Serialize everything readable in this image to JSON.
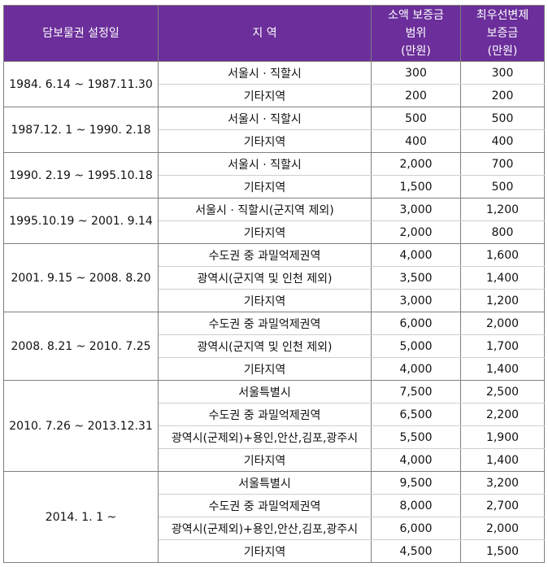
{
  "header": {
    "col1": "담보물권 설정일",
    "col2": "지 역",
    "col3": "소액 보증금\n범위\n(만원)",
    "col4": "최우선변제\n보증금\n(만원)"
  },
  "groups": [
    {
      "period": "1984. 6.14 ~ 1987.11.30",
      "rows": [
        {
          "region": "서울시 · 직할시",
          "range": "300",
          "priority": "300"
        },
        {
          "region": "기타지역",
          "range": "200",
          "priority": "200"
        }
      ]
    },
    {
      "period": "1987.12. 1 ~ 1990. 2.18",
      "rows": [
        {
          "region": "서울시 · 직할시",
          "range": "500",
          "priority": "500"
        },
        {
          "region": "기타지역",
          "range": "400",
          "priority": "400"
        }
      ]
    },
    {
      "period": "1990. 2.19 ~ 1995.10.18",
      "rows": [
        {
          "region": "서울시 · 직할시",
          "range": "2,000",
          "priority": "700"
        },
        {
          "region": "기타지역",
          "range": "1,500",
          "priority": "500"
        }
      ]
    },
    {
      "period": "1995.10.19 ~ 2001. 9.14",
      "rows": [
        {
          "region": "서울시 · 직할시(군지역 제외)",
          "range": "3,000",
          "priority": "1,200"
        },
        {
          "region": "기타지역",
          "range": "2,000",
          "priority": "800"
        }
      ]
    },
    {
      "period": "2001. 9.15 ~ 2008. 8.20",
      "rows": [
        {
          "region": "수도권 중 과밀억제권역",
          "range": "4,000",
          "priority": "1,600"
        },
        {
          "region": "광역시(군지역 및 인천 제외)",
          "range": "3,500",
          "priority": "1,400"
        },
        {
          "region": "기타지역",
          "range": "3,000",
          "priority": "1,200"
        }
      ]
    },
    {
      "period": "2008. 8.21 ~ 2010. 7.25",
      "rows": [
        {
          "region": "수도권 중 과밀억제권역",
          "range": "6,000",
          "priority": "2,000"
        },
        {
          "region": "광역시(군지역 및 인천 제외)",
          "range": "5,000",
          "priority": "1,700"
        },
        {
          "region": "기타지역",
          "range": "4,000",
          "priority": "1,400"
        }
      ]
    },
    {
      "period": "2010. 7.26 ~ 2013.12.31",
      "rows": [
        {
          "region": "서울특별시",
          "range": "7,500",
          "priority": "2,500"
        },
        {
          "region": "수도권 중 과밀억제권역",
          "range": "6,500",
          "priority": "2,200"
        },
        {
          "region": "광역시(군제외)+용인,안산,김포,광주시",
          "range": "5,500",
          "priority": "1,900"
        },
        {
          "region": "기타지역",
          "range": "4,000",
          "priority": "1,400"
        }
      ]
    },
    {
      "period": "2014. 1. 1 ~",
      "rows": [
        {
          "region": "서울특별시",
          "range": "9,500",
          "priority": "3,200"
        },
        {
          "region": "수도권 중 과밀억제권역",
          "range": "8,000",
          "priority": "2,700"
        },
        {
          "region": "광역시(군제외)+용인,안산,김포,광주시",
          "range": "6,000",
          "priority": "2,000"
        },
        {
          "region": "기타지역",
          "range": "4,500",
          "priority": "1,500"
        }
      ]
    }
  ],
  "colors": {
    "header_bg": "#6b2e9a",
    "header_text": "#ffffff"
  }
}
